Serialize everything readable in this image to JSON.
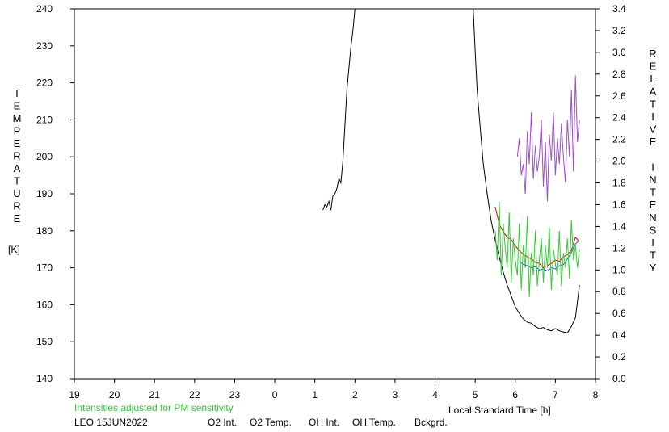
{
  "chart_data": {
    "type": "line",
    "y_left_label": "TEMPERATURE",
    "y_left_unit": "[K]",
    "y_right_label": "RELATIVE INTENSITY",
    "xlabel": "Local Standard Time [h]",
    "note": "Intensities adjusted for PM sensitivity",
    "station_date": "LEO 15JUN2022",
    "x_ticks": [
      "19",
      "20",
      "21",
      "22",
      "23",
      "0",
      "1",
      "2",
      "3",
      "4",
      "5",
      "6",
      "7",
      "8"
    ],
    "x_range": [
      19,
      32
    ],
    "ylim_left": [
      140,
      240
    ],
    "y_left_ticks": [
      140,
      150,
      160,
      170,
      180,
      190,
      200,
      210,
      220,
      230,
      240
    ],
    "ylim_right": [
      0.0,
      3.4
    ],
    "y_right_ticks": [
      "0.0",
      "0.2",
      "0.4",
      "0.6",
      "0.8",
      "1.0",
      "1.2",
      "1.4",
      "1.6",
      "1.8",
      "2.0",
      "2.2",
      "2.4",
      "2.6",
      "2.8",
      "3.0",
      "3.2",
      "3.4"
    ],
    "legend": [
      {
        "label": "O2 Int.",
        "color": "#1a6fd9"
      },
      {
        "label": "O2 Temp.",
        "color": "#9b4fc9"
      },
      {
        "label": "OH Int.",
        "color": "#e00000"
      },
      {
        "label": "OH Temp.",
        "color": "#33cc33"
      },
      {
        "label": "Bckgrd.",
        "color": "#000000"
      }
    ],
    "note_color": "#33cc33",
    "series": [
      {
        "name": "Bckgrd.",
        "color": "#000000",
        "axis": "right",
        "x": [
          25.2,
          25.25,
          25.3,
          25.35,
          25.4,
          25.45,
          25.5,
          25.55,
          25.6,
          25.65,
          25.7,
          25.8,
          25.9,
          25.95,
          26.0,
          28.95,
          29.0,
          29.05,
          29.1,
          29.15,
          29.2,
          29.3,
          29.4,
          29.5,
          29.6,
          29.7,
          29.8,
          29.9,
          30.0,
          30.1,
          30.2,
          30.3,
          30.4,
          30.5,
          30.6,
          30.7,
          30.8,
          30.9,
          31.0,
          31.1,
          31.2,
          31.3,
          31.4,
          31.5,
          31.6
        ],
        "y": [
          1.55,
          1.6,
          1.58,
          1.63,
          1.55,
          1.68,
          1.7,
          1.75,
          1.84,
          1.8,
          2.0,
          2.66,
          3.05,
          3.2,
          3.4,
          3.4,
          3.0,
          2.65,
          2.42,
          2.2,
          1.98,
          1.7,
          1.45,
          1.27,
          1.12,
          0.98,
          0.86,
          0.76,
          0.66,
          0.6,
          0.55,
          0.52,
          0.51,
          0.48,
          0.46,
          0.47,
          0.45,
          0.44,
          0.46,
          0.44,
          0.43,
          0.42,
          0.48,
          0.56,
          0.86
        ]
      },
      {
        "name": "O2 Int.",
        "color": "#1a6fd9",
        "axis": "right",
        "x": [
          30.1,
          30.2,
          30.3,
          30.4,
          30.5,
          30.6,
          30.7,
          30.8,
          30.9,
          31.0,
          31.1,
          31.2,
          31.3,
          31.4,
          31.5,
          31.6
        ],
        "y": [
          1.08,
          1.05,
          1.04,
          1.02,
          1.03,
          1.0,
          1.01,
          0.99,
          1.02,
          1.01,
          1.04,
          1.05,
          1.1,
          1.16,
          1.24,
          1.27
        ]
      },
      {
        "name": "OH Int.",
        "color": "#e00000",
        "axis": "right",
        "x": [
          29.5,
          29.6,
          29.7,
          29.8,
          29.9,
          30.0,
          30.1,
          30.2,
          30.3,
          30.4,
          30.5,
          30.6,
          30.7,
          30.8,
          30.9,
          31.0,
          31.1,
          31.2,
          31.3,
          31.4,
          31.5,
          31.6
        ],
        "y": [
          1.58,
          1.42,
          1.35,
          1.3,
          1.28,
          1.22,
          1.18,
          1.14,
          1.12,
          1.1,
          1.07,
          1.06,
          1.02,
          1.04,
          1.06,
          1.09,
          1.08,
          1.12,
          1.14,
          1.18,
          1.3,
          1.26
        ]
      },
      {
        "name": "O2 Temp.",
        "color": "#9b4fc9",
        "axis": "left",
        "x": [
          30.05,
          30.1,
          30.15,
          30.2,
          30.25,
          30.3,
          30.35,
          30.4,
          30.45,
          30.5,
          30.55,
          30.6,
          30.65,
          30.7,
          30.75,
          30.8,
          30.85,
          30.9,
          30.95,
          31.0,
          31.05,
          31.1,
          31.15,
          31.2,
          31.25,
          31.3,
          31.35,
          31.4,
          31.45,
          31.5,
          31.55,
          31.6
        ],
        "y": [
          200,
          205,
          195,
          198,
          190,
          207,
          198,
          212,
          194,
          203,
          196,
          200,
          210,
          192,
          204,
          188,
          206,
          199,
          212,
          195,
          205,
          198,
          209,
          200,
          193,
          210,
          200,
          218,
          196,
          222,
          204,
          210
        ]
      },
      {
        "name": "OH Temp.",
        "color": "#33cc33",
        "axis": "left",
        "x": [
          29.5,
          29.55,
          29.6,
          29.65,
          29.7,
          29.75,
          29.8,
          29.85,
          29.9,
          29.95,
          30.0,
          30.05,
          30.1,
          30.15,
          30.2,
          30.25,
          30.3,
          30.35,
          30.4,
          30.45,
          30.5,
          30.55,
          30.6,
          30.65,
          30.7,
          30.75,
          30.8,
          30.85,
          30.9,
          30.95,
          31.0,
          31.05,
          31.1,
          31.15,
          31.2,
          31.25,
          31.3,
          31.35,
          31.4,
          31.45,
          31.5,
          31.55,
          31.6
        ],
        "y": [
          180,
          172,
          188,
          168,
          182,
          175,
          170,
          185,
          166,
          178,
          172,
          168,
          182,
          164,
          176,
          170,
          184,
          162,
          174,
          168,
          180,
          165,
          172,
          178,
          166,
          176,
          170,
          181,
          164,
          175,
          171,
          168,
          180,
          165,
          174,
          170,
          178,
          167,
          183,
          172,
          176,
          170,
          175
        ]
      }
    ]
  }
}
